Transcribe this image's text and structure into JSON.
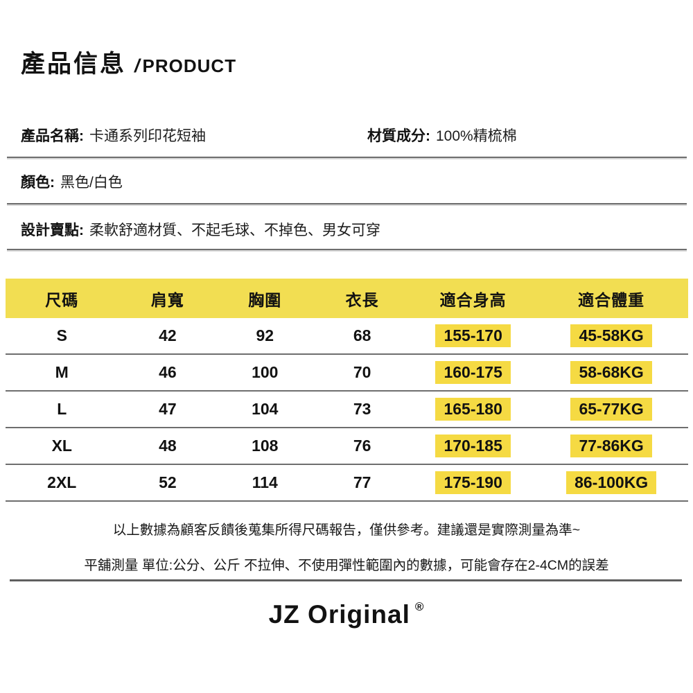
{
  "header": {
    "title_zh": "產品信息",
    "title_slash": "/",
    "title_en": "PRODUCT"
  },
  "info": {
    "product_name": {
      "label": "產品名稱:",
      "value": "卡通系列印花短袖"
    },
    "material": {
      "label": "材質成分:",
      "value": "100%精梳棉"
    },
    "color": {
      "label": "顏色:",
      "value": "黑色/白色"
    },
    "design": {
      "label": "設計賣點:",
      "value": "柔軟舒適材質、不起毛球、不掉色、男女可穿"
    }
  },
  "size_chart": {
    "columns": [
      "尺碼",
      "肩寬",
      "胸圍",
      "衣長",
      "適合身高",
      "適合體重"
    ],
    "rows": [
      {
        "size": "S",
        "shoulder": "42",
        "chest": "92",
        "length": "68",
        "height": "155-170",
        "weight": "45-58KG"
      },
      {
        "size": "M",
        "shoulder": "46",
        "chest": "100",
        "length": "70",
        "height": "160-175",
        "weight": "58-68KG"
      },
      {
        "size": "L",
        "shoulder": "47",
        "chest": "104",
        "length": "73",
        "height": "165-180",
        "weight": "65-77KG"
      },
      {
        "size": "XL",
        "shoulder": "48",
        "chest": "108",
        "length": "76",
        "height": "170-185",
        "weight": "77-86KG"
      },
      {
        "size": "2XL",
        "shoulder": "52",
        "chest": "114",
        "length": "77",
        "height": "175-190",
        "weight": "86-100KG"
      }
    ]
  },
  "notes": {
    "reference": "以上數據為顧客反饋後蒐集所得尺碼報告，僅供參考。建議還是實際測量為準~",
    "measurement": "平舖測量 單位:公分、公斤 不拉伸、不使用彈性範圍內的數據，可能會存在2-4CM的誤差"
  },
  "brand": {
    "name": "JZ Original",
    "reg": "®"
  },
  "colors": {
    "header_yellow": "#F2DE52",
    "highlight_yellow": "#F5DA43",
    "line_gray": "#6e6e6e"
  }
}
